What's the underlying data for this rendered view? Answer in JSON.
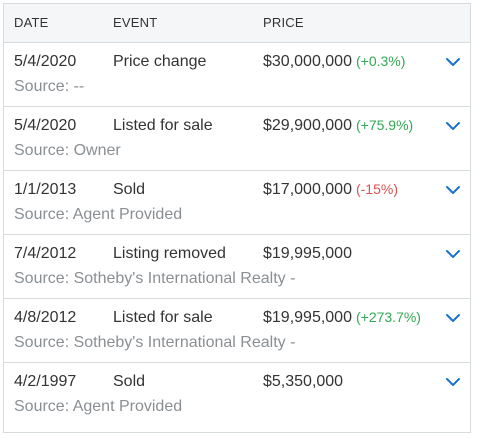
{
  "headers": {
    "date": "DATE",
    "event": "EVENT",
    "price": "PRICE"
  },
  "rows": [
    {
      "date": "5/4/2020",
      "event": "Price change",
      "price": "$30,000,000",
      "change": "(+0.3%)",
      "change_dir": "pos",
      "source": "Source: --"
    },
    {
      "date": "5/4/2020",
      "event": "Listed for sale",
      "price": "$29,900,000",
      "change": "(+75.9%)",
      "change_dir": "pos",
      "source": "Source: Owner"
    },
    {
      "date": "1/1/2013",
      "event": "Sold",
      "price": "$17,000,000",
      "change": "(-15%)",
      "change_dir": "neg",
      "source": "Source: Agent Provided"
    },
    {
      "date": "7/4/2012",
      "event": "Listing removed",
      "price": "$19,995,000",
      "change": "",
      "change_dir": "",
      "source": "Source: Sotheby's International Realty -"
    },
    {
      "date": "4/8/2012",
      "event": "Listed for sale",
      "price": "$19,995,000",
      "change": "(+273.7%)",
      "change_dir": "pos",
      "source": "Source: Sotheby's International Realty -"
    },
    {
      "date": "4/2/1997",
      "event": "Sold",
      "price": "$5,350,000",
      "change": "",
      "change_dir": "",
      "source": "Source: Agent Provided"
    }
  ],
  "icons": {
    "expand": "chevron-down-icon"
  },
  "colors": {
    "positive": "#34a853",
    "negative": "#d9534f",
    "chevron": "#1a73c8",
    "source_text": "#8a8f94",
    "header_bg": "#f4f6f8"
  }
}
